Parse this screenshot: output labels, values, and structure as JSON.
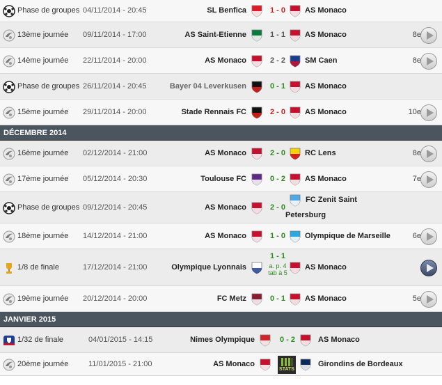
{
  "colors": {
    "win": "#2d8a1e",
    "loss": "#c81e1e",
    "draw": "#555555",
    "month_bar": "#4a5560"
  },
  "months": {
    "dec": "DÉCEMBRE 2014",
    "jan": "JANVIER 2015"
  },
  "matches": [
    {
      "comp": "Phase de groupes",
      "comp_icon": "champions-league-icon",
      "date": "04/11/2014 - 20:45",
      "home": "SL Benfica",
      "home_logo": "benfica-logo",
      "score": "1 - 0",
      "result": "loss",
      "away": "AS Monaco",
      "away_logo": "monaco-logo",
      "rank": "",
      "has_play": false
    },
    {
      "comp": "13ème journée",
      "comp_icon": "ligue1-icon",
      "date": "09/11/2014 - 17:00",
      "home": "AS Saint-Etienne",
      "home_logo": "saint-etienne-logo",
      "score": "1 - 1",
      "result": "draw",
      "away": "AS Monaco",
      "away_logo": "monaco-logo",
      "rank": "8e",
      "has_play": true
    },
    {
      "comp": "14ème journée",
      "comp_icon": "ligue1-icon",
      "date": "22/11/2014 - 20:00",
      "home": "AS Monaco",
      "home_logo": "monaco-logo",
      "score": "2 - 2",
      "result": "draw",
      "away": "SM Caen",
      "away_logo": "caen-logo",
      "rank": "8e",
      "has_play": true
    },
    {
      "comp": "Phase de groupes",
      "comp_icon": "champions-league-icon",
      "date": "26/11/2014 - 20:45",
      "home": "Bayer 04 Leverkusen",
      "home_logo": "leverkusen-logo",
      "score": "0 - 1",
      "result": "win",
      "away": "AS Monaco",
      "away_logo": "monaco-logo",
      "rank": "",
      "has_play": false
    },
    {
      "comp": "15ème journée",
      "comp_icon": "ligue1-icon",
      "date": "29/11/2014 - 20:00",
      "home": "Stade Rennais FC",
      "home_logo": "rennes-logo",
      "score": "2 - 0",
      "result": "loss",
      "away": "AS Monaco",
      "away_logo": "monaco-logo",
      "rank": "10e",
      "has_play": true
    },
    {
      "comp": "16ème journée",
      "comp_icon": "ligue1-icon",
      "date": "02/12/2014 - 21:00",
      "home": "AS Monaco",
      "home_logo": "monaco-logo",
      "score": "2 - 0",
      "result": "win",
      "away": "RC Lens",
      "away_logo": "lens-logo",
      "rank": "8e",
      "has_play": true
    },
    {
      "comp": "17ème journée",
      "comp_icon": "ligue1-icon",
      "date": "05/12/2014 - 20:30",
      "home": "Toulouse FC",
      "home_logo": "toulouse-logo",
      "score": "0 - 2",
      "result": "win",
      "away": "AS Monaco",
      "away_logo": "monaco-logo",
      "rank": "7e",
      "has_play": true
    },
    {
      "comp": "Phase de groupes",
      "comp_icon": "champions-league-icon",
      "date": "09/12/2014 - 20:45",
      "home": "AS Monaco",
      "home_logo": "monaco-logo",
      "score": "2 - 0",
      "result": "win",
      "away": "FC Zenit Saint",
      "away2": "Petersburg",
      "away_logo": "zenit-logo",
      "rank": "",
      "has_play": false
    },
    {
      "comp": "18ème journée",
      "comp_icon": "ligue1-icon",
      "date": "14/12/2014 - 21:00",
      "home": "AS Monaco",
      "home_logo": "monaco-logo",
      "score": "1 - 0",
      "result": "win",
      "away": "Olympique de Marseille",
      "away_logo": "marseille-logo",
      "rank": "6e",
      "has_play": true
    },
    {
      "comp": "1/8 de finale",
      "comp_icon": "coupe-ligue-icon",
      "date": "17/12/2014 - 21:00",
      "home": "Olympique Lyonnais",
      "home_logo": "lyon-logo",
      "score": "1 - 1",
      "result": "win",
      "note": "a. p. 4 tab à 5",
      "away": "AS Monaco",
      "away_logo": "monaco-logo",
      "rank": "",
      "has_play": true,
      "play_dark": true
    },
    {
      "comp": "19ème journée",
      "comp_icon": "ligue1-icon",
      "date": "20/12/2014 - 20:00",
      "home": "FC Metz",
      "home_logo": "metz-logo",
      "score": "0 - 1",
      "result": "win",
      "away": "AS Monaco",
      "away_logo": "monaco-logo",
      "rank": "5e",
      "has_play": true
    },
    {
      "comp": "1/32 de finale",
      "comp_icon": "coupe-de-france-icon",
      "date": "04/01/2015 - 14:15",
      "home": "Nimes Olympique",
      "home_logo": "nimes-logo",
      "score": "0 - 2",
      "result": "win",
      "away": "AS Monaco",
      "away_logo": "monaco-logo",
      "rank": "",
      "has_play": false
    },
    {
      "comp": "20ème journée",
      "comp_icon": "ligue1-icon",
      "date": "11/01/2015 - 21:00",
      "home": "AS Monaco",
      "home_logo": "monaco-logo",
      "score": "",
      "result": "draw",
      "stats_label": "STATS",
      "away": "Girondins de Bordeaux",
      "away_logo": "bordeaux-logo",
      "rank": "",
      "has_play": false
    }
  ]
}
